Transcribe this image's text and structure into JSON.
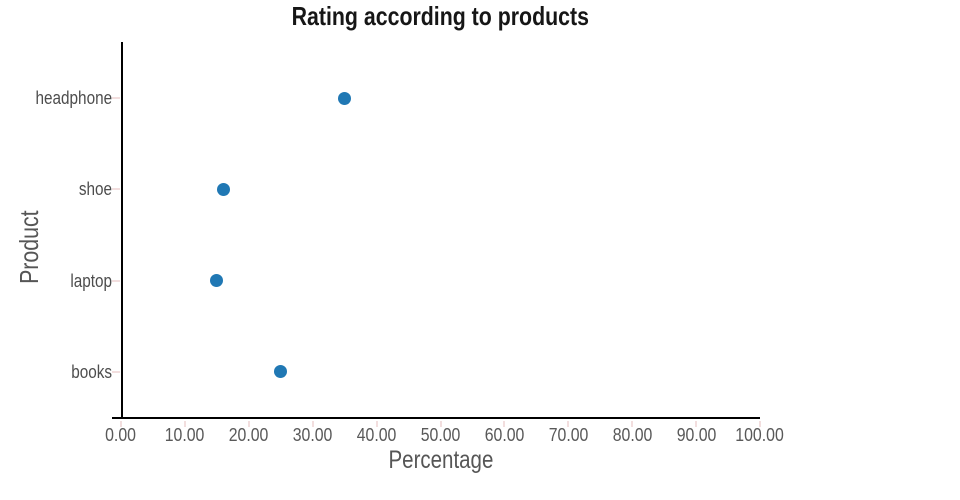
{
  "chart_data": {
    "type": "scatter",
    "orientation": "horizontal",
    "title": "Rating according to products",
    "xlabel": "Percentage",
    "ylabel": "Product",
    "categories": [
      "headphone",
      "shoe",
      "laptop",
      "books"
    ],
    "values": [
      35,
      16,
      15,
      25
    ],
    "x_tick_labels": [
      "0.00",
      "10.00",
      "20.00",
      "30.00",
      "40.00",
      "50.00",
      "60.00",
      "70.00",
      "80.00",
      "90.00",
      "100.00"
    ],
    "xlim": [
      0,
      100
    ],
    "grid": false,
    "legend": "none",
    "colors": {
      "point": "#2078b4",
      "axis_line": "#000000",
      "tick_mark": "#f2dede",
      "title_text": "#161616",
      "axis_title_text": "#565656",
      "tick_label_text": "#595959",
      "category_label_text": "#4d4d4d"
    }
  }
}
